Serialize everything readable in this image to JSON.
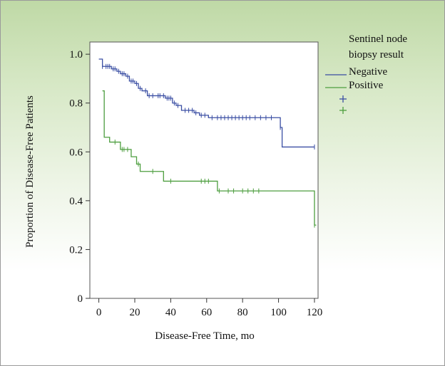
{
  "chart_data": {
    "type": "line",
    "subtype": "kaplan-meier step plot with censor marks",
    "title": "",
    "xlabel": "Disease-Free Time, mo",
    "ylabel": "Proportion of Disease-Free Patients",
    "xlim": [
      -5,
      122
    ],
    "ylim": [
      0,
      1.05
    ],
    "xticks": [
      0,
      20,
      40,
      60,
      80,
      100,
      120
    ],
    "yticks": [
      0,
      0.2,
      0.4,
      0.6,
      0.8,
      1.0
    ],
    "xtick_labels": [
      "0",
      "20",
      "40",
      "60",
      "80",
      "100",
      "120"
    ],
    "ytick_labels": [
      "0",
      "0.2",
      "0.4",
      "0.6",
      "0.8",
      "1.0"
    ],
    "grid": false,
    "legend": {
      "title_line1": "Sentinel node",
      "title_line2": "biopsy result",
      "placement": "right, outside plot"
    },
    "series": [
      {
        "name": "Negative",
        "color": "#3a4ea3",
        "steps": [
          [
            0,
            0.98
          ],
          [
            2,
            0.95
          ],
          [
            7,
            0.94
          ],
          [
            10,
            0.93
          ],
          [
            12,
            0.92
          ],
          [
            15,
            0.91
          ],
          [
            17,
            0.89
          ],
          [
            20,
            0.88
          ],
          [
            22,
            0.86
          ],
          [
            24,
            0.85
          ],
          [
            27,
            0.83
          ],
          [
            37,
            0.82
          ],
          [
            41,
            0.8
          ],
          [
            43,
            0.79
          ],
          [
            46,
            0.77
          ],
          [
            53,
            0.76
          ],
          [
            56,
            0.75
          ],
          [
            61,
            0.74
          ],
          [
            97,
            0.74
          ],
          [
            101,
            0.7
          ],
          [
            102,
            0.62
          ],
          [
            120,
            0.62
          ]
        ],
        "censors": [
          [
            2,
            0.95
          ],
          [
            4,
            0.95
          ],
          [
            5,
            0.95
          ],
          [
            6,
            0.95
          ],
          [
            8,
            0.94
          ],
          [
            9,
            0.94
          ],
          [
            11,
            0.93
          ],
          [
            13,
            0.92
          ],
          [
            14,
            0.92
          ],
          [
            16,
            0.91
          ],
          [
            18,
            0.89
          ],
          [
            19,
            0.89
          ],
          [
            21,
            0.88
          ],
          [
            23,
            0.86
          ],
          [
            26,
            0.85
          ],
          [
            28,
            0.83
          ],
          [
            30,
            0.83
          ],
          [
            33,
            0.83
          ],
          [
            34,
            0.83
          ],
          [
            36,
            0.83
          ],
          [
            38,
            0.82
          ],
          [
            39,
            0.82
          ],
          [
            40,
            0.82
          ],
          [
            42,
            0.8
          ],
          [
            44,
            0.79
          ],
          [
            48,
            0.77
          ],
          [
            50,
            0.77
          ],
          [
            52,
            0.77
          ],
          [
            54,
            0.76
          ],
          [
            57,
            0.75
          ],
          [
            59,
            0.75
          ],
          [
            63,
            0.74
          ],
          [
            66,
            0.74
          ],
          [
            68,
            0.74
          ],
          [
            70,
            0.74
          ],
          [
            72,
            0.74
          ],
          [
            74,
            0.74
          ],
          [
            76,
            0.74
          ],
          [
            78,
            0.74
          ],
          [
            80,
            0.74
          ],
          [
            82,
            0.74
          ],
          [
            84,
            0.74
          ],
          [
            87,
            0.74
          ],
          [
            90,
            0.74
          ],
          [
            93,
            0.74
          ],
          [
            96,
            0.74
          ],
          [
            101,
            0.7
          ],
          [
            120,
            0.62
          ]
        ]
      },
      {
        "name": "Positive",
        "color": "#4d9e3f",
        "steps": [
          [
            2,
            0.85
          ],
          [
            3,
            0.66
          ],
          [
            6,
            0.64
          ],
          [
            12,
            0.61
          ],
          [
            18,
            0.58
          ],
          [
            21,
            0.55
          ],
          [
            23,
            0.52
          ],
          [
            36,
            0.48
          ],
          [
            64,
            0.48
          ],
          [
            66,
            0.44
          ],
          [
            119,
            0.44
          ],
          [
            120,
            0.3
          ],
          [
            121,
            0.3
          ]
        ],
        "censors": [
          [
            9,
            0.64
          ],
          [
            13,
            0.61
          ],
          [
            14,
            0.61
          ],
          [
            16,
            0.61
          ],
          [
            22,
            0.55
          ],
          [
            30,
            0.52
          ],
          [
            40,
            0.48
          ],
          [
            57,
            0.48
          ],
          [
            59,
            0.48
          ],
          [
            61,
            0.48
          ],
          [
            67,
            0.44
          ],
          [
            72,
            0.44
          ],
          [
            75,
            0.44
          ],
          [
            80,
            0.44
          ],
          [
            83,
            0.44
          ],
          [
            86,
            0.44
          ],
          [
            89,
            0.44
          ],
          [
            120,
            0.3
          ]
        ]
      }
    ]
  }
}
